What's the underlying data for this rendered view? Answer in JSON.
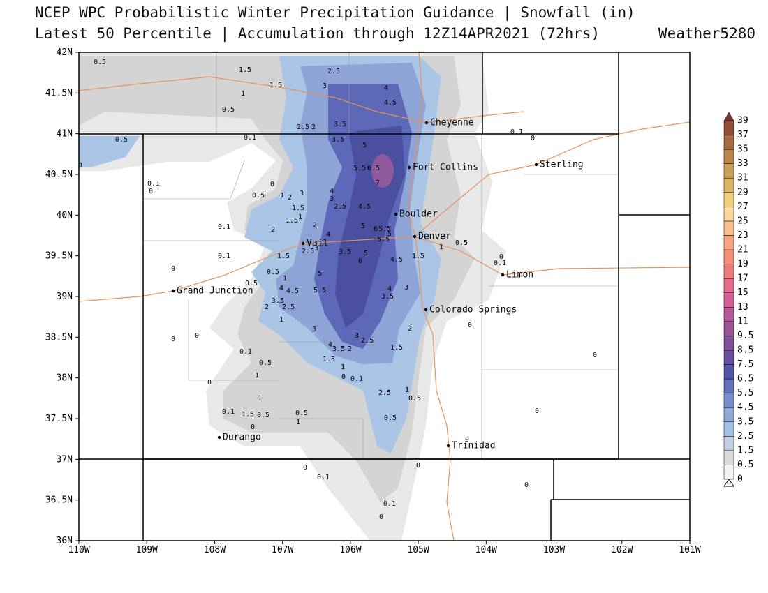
{
  "header": {
    "title": "NCEP WPC Probabilistic Winter Precipitation Guidance | Snowfall (in)",
    "subtitle": "Latest 50 Percentile | Accumulation through 12Z14APR2021 (72hrs)",
    "brand": "Weather5280"
  },
  "map": {
    "lat_labels": [
      "42N",
      "41.5N",
      "41N",
      "40.5N",
      "40N",
      "39.5N",
      "39N",
      "38.5N",
      "38N",
      "37.5N",
      "37N",
      "36.5N",
      "36N"
    ],
    "lon_labels": [
      "110W",
      "109W",
      "108W",
      "107W",
      "106W",
      "105W",
      "104W",
      "103W",
      "102W",
      "101W"
    ],
    "cities": [
      "Cheyenne",
      "Fort Collins",
      "Sterling",
      "Boulder",
      "Denver",
      "Vail",
      "Limon",
      "Grand Junction",
      "Colorado Springs",
      "Durango",
      "Trinidad"
    ],
    "contour_labels": [
      0.5,
      1.5,
      2.5,
      1.5,
      3,
      4,
      1,
      4.5,
      0.5,
      2.5,
      2,
      3.5,
      0.5,
      0.1,
      3.5,
      5,
      0.1,
      0,
      5.5,
      6.5,
      7,
      0.1,
      0,
      0,
      1,
      2,
      3,
      4,
      3,
      0.5,
      1.5,
      2.5,
      4.5,
      1.5,
      1,
      0.1,
      2,
      2,
      5,
      6,
      5.5,
      5,
      5.5,
      4,
      2.5,
      3,
      3.5,
      5,
      6,
      4.5,
      1.5,
      1,
      0.5,
      0,
      0.1,
      0.1,
      1.5,
      0,
      0.5,
      1,
      5,
      0.5,
      4,
      4.5,
      5.5,
      4,
      3,
      3.5,
      3.5,
      2,
      2.5,
      1,
      3,
      0,
      2,
      0,
      0,
      3,
      2.5,
      4,
      3.5,
      2,
      1.5,
      0.1,
      1.5,
      0,
      0.5,
      1,
      1,
      0,
      0.1,
      0,
      2.5,
      1,
      0.5,
      1,
      0.1,
      1.5,
      0.5,
      0.5,
      0,
      0.5,
      1,
      0,
      0,
      0,
      0,
      0.1,
      0,
      0.1,
      0,
      1
    ]
  },
  "colorbar": {
    "levels": [
      0,
      0.5,
      1.5,
      2.5,
      3.5,
      4.5,
      5.5,
      6.5,
      7.5,
      8.5,
      9.5,
      11,
      13,
      15,
      17,
      19,
      21,
      23,
      25,
      27,
      29,
      31,
      33,
      35,
      37,
      39
    ],
    "colors": [
      "#f2f2f2",
      "#dadada",
      "#c3d0e4",
      "#a3c0e6",
      "#8ea8d8",
      "#7a8ecf",
      "#6270be",
      "#4f55a8",
      "#6a4f9f",
      "#7f4f99",
      "#9a5597",
      "#b8589b",
      "#d45d95",
      "#e56a8d",
      "#ef7b7e",
      "#f48e77",
      "#f7a57f",
      "#f9bd8e",
      "#fbd79c",
      "#f1d27a",
      "#dcb666",
      "#c9a056",
      "#b98548",
      "#a86a3e",
      "#934f36",
      "#7a3630"
    ]
  }
}
